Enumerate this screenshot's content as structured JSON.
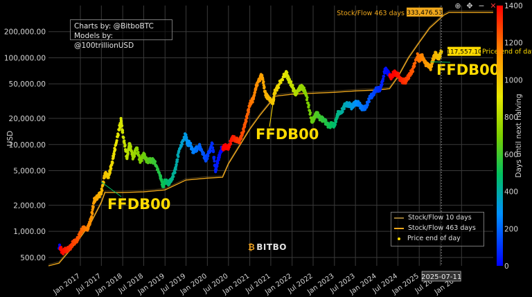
{
  "credits": {
    "line1": "Charts by: @BitboBTC",
    "line2": "Models by: @100trillionUSD"
  },
  "brand": {
    "name": "BITBO"
  },
  "toolbar": [
    {
      "name": "zoom-in-icon",
      "glyph": "⊕"
    },
    {
      "name": "pan-icon",
      "glyph": "✥"
    },
    {
      "name": "minus-icon",
      "glyph": "−"
    },
    {
      "name": "close-icon",
      "glyph": "✕"
    }
  ],
  "legend": [
    {
      "label": "Stock/Flow 10 days",
      "color": "#9a7a35",
      "kind": "line"
    },
    {
      "label": "Stock/Flow 463 days",
      "color": "#f0a81c",
      "kind": "line"
    },
    {
      "label": "Price end of day",
      "color": "#FFDB00",
      "kind": "dot"
    }
  ],
  "annotations": [
    "FFDB00",
    "FFDB00",
    "FFDB00"
  ],
  "chart_data": {
    "type": "scatter",
    "ylabel": "USD",
    "y_scale": "log",
    "ylim": [
      400,
      400000
    ],
    "y_ticks": [
      "500.00",
      "1,000.00",
      "2,000.00",
      "5,000.00",
      "10,000.00",
      "20,000.00",
      "50,000.00",
      "100,000.00",
      "200,000.00"
    ],
    "y_tick_values": [
      500,
      1000,
      2000,
      5000,
      10000,
      20000,
      50000,
      100000,
      200000
    ],
    "xlim": [
      "2016-04-01",
      "2026-10-01"
    ],
    "x_ticks": [
      "Jan 2017",
      "Jul 2017",
      "Jan 2018",
      "Jul 2018",
      "Jan 2019",
      "Jul 2019",
      "Jan 2020",
      "Jul 2020",
      "Jan 2021",
      "Jul 2021",
      "Jan 2022",
      "Jul 2022",
      "Jan 2023",
      "Jul 2023",
      "Jan 2024",
      "Jul 2024",
      "Jan 2025",
      "Jul 2025",
      "Jan 2026"
    ],
    "x_tick_dates": [
      "2017-01-01",
      "2017-07-01",
      "2018-01-01",
      "2018-07-01",
      "2019-01-01",
      "2019-07-01",
      "2020-01-01",
      "2020-07-01",
      "2021-01-01",
      "2021-07-01",
      "2022-01-01",
      "2022-07-01",
      "2023-01-01",
      "2023-07-01",
      "2024-01-01",
      "2024-07-01",
      "2025-01-01",
      "2025-07-01",
      "2026-01-01"
    ],
    "colorbar": {
      "label": "Days until next halving",
      "range": [
        0,
        1400
      ],
      "ticks": [
        0,
        200,
        400,
        600,
        800,
        1000,
        1200,
        1400
      ]
    },
    "series": [
      {
        "name": "Price end of day",
        "color_by": "days_until_halving",
        "points": [
          [
            "2016-07-01",
            670
          ],
          [
            "2016-08-01",
            580
          ],
          [
            "2016-09-01",
            610
          ],
          [
            "2016-10-01",
            640
          ],
          [
            "2016-11-01",
            740
          ],
          [
            "2016-12-01",
            780
          ],
          [
            "2017-01-01",
            960
          ],
          [
            "2017-02-01",
            1100
          ],
          [
            "2017-03-01",
            1050
          ],
          [
            "2017-04-01",
            1350
          ],
          [
            "2017-05-01",
            2300
          ],
          [
            "2017-06-01",
            2500
          ],
          [
            "2017-07-01",
            2800
          ],
          [
            "2017-08-01",
            4600
          ],
          [
            "2017-09-01",
            4300
          ],
          [
            "2017-10-01",
            6100
          ],
          [
            "2017-11-01",
            9800
          ],
          [
            "2017-12-17",
            19000
          ],
          [
            "2018-01-01",
            13500
          ],
          [
            "2018-02-06",
            6900
          ],
          [
            "2018-03-01",
            10300
          ],
          [
            "2018-04-01",
            7000
          ],
          [
            "2018-05-01",
            9200
          ],
          [
            "2018-06-01",
            6400
          ],
          [
            "2018-07-01",
            7700
          ],
          [
            "2018-08-01",
            6400
          ],
          [
            "2018-09-01",
            6600
          ],
          [
            "2018-10-01",
            6400
          ],
          [
            "2018-11-20",
            4400
          ],
          [
            "2018-12-15",
            3300
          ],
          [
            "2019-01-01",
            3800
          ],
          [
            "2019-02-01",
            3600
          ],
          [
            "2019-03-01",
            4000
          ],
          [
            "2019-04-01",
            5200
          ],
          [
            "2019-05-01",
            8500
          ],
          [
            "2019-06-26",
            12900
          ],
          [
            "2019-07-15",
            10200
          ],
          [
            "2019-08-01",
            10400
          ],
          [
            "2019-09-01",
            8300
          ],
          [
            "2019-10-26",
            9500
          ],
          [
            "2019-11-01",
            9200
          ],
          [
            "2019-12-17",
            6800
          ],
          [
            "2020-01-01",
            7200
          ],
          [
            "2020-02-12",
            10300
          ],
          [
            "2020-03-12",
            4900
          ],
          [
            "2020-04-01",
            6600
          ],
          [
            "2020-05-01",
            8800
          ],
          [
            "2020-06-01",
            9500
          ],
          [
            "2020-07-01",
            9200
          ],
          [
            "2020-08-01",
            11800
          ],
          [
            "2020-09-01",
            11500
          ],
          [
            "2020-10-01",
            10800
          ],
          [
            "2020-11-01",
            13700
          ],
          [
            "2020-12-01",
            19400
          ],
          [
            "2021-01-01",
            29000
          ],
          [
            "2021-02-01",
            34000
          ],
          [
            "2021-03-01",
            49000
          ],
          [
            "2021-04-14",
            63500
          ],
          [
            "2021-05-19",
            37000
          ],
          [
            "2021-06-01",
            36000
          ],
          [
            "2021-07-20",
            29800
          ],
          [
            "2021-08-01",
            39000
          ],
          [
            "2021-09-01",
            47000
          ],
          [
            "2021-11-10",
            67500
          ],
          [
            "2021-12-01",
            57000
          ],
          [
            "2022-01-01",
            47000
          ],
          [
            "2022-02-01",
            38000
          ],
          [
            "2022-03-01",
            44000
          ],
          [
            "2022-04-01",
            46000
          ],
          [
            "2022-05-01",
            38000
          ],
          [
            "2022-06-18",
            19000
          ],
          [
            "2022-07-01",
            19300
          ],
          [
            "2022-08-01",
            23000
          ],
          [
            "2022-09-01",
            20000
          ],
          [
            "2022-10-01",
            19400
          ],
          [
            "2022-11-21",
            15800
          ],
          [
            "2022-12-01",
            17000
          ],
          [
            "2023-01-01",
            16600
          ],
          [
            "2023-02-01",
            23000
          ],
          [
            "2023-03-01",
            23500
          ],
          [
            "2023-04-01",
            28500
          ],
          [
            "2023-05-01",
            29200
          ],
          [
            "2023-06-01",
            27000
          ],
          [
            "2023-07-01",
            30500
          ],
          [
            "2023-08-01",
            29200
          ],
          [
            "2023-09-01",
            25900
          ],
          [
            "2023-10-01",
            27000
          ],
          [
            "2023-11-01",
            34500
          ],
          [
            "2023-12-01",
            38000
          ],
          [
            "2024-01-01",
            44000
          ],
          [
            "2024-02-01",
            43000
          ],
          [
            "2024-03-14",
            73000
          ],
          [
            "2024-04-01",
            69000
          ],
          [
            "2024-05-01",
            60000
          ],
          [
            "2024-06-01",
            67000
          ],
          [
            "2024-07-01",
            63000
          ],
          [
            "2024-08-05",
            54000
          ],
          [
            "2024-09-06",
            54000
          ],
          [
            "2024-10-01",
            61000
          ],
          [
            "2024-11-01",
            70000
          ],
          [
            "2024-12-17",
            106000
          ],
          [
            "2025-01-01",
            94000
          ],
          [
            "2025-01-20",
            105000
          ],
          [
            "2025-02-01",
            100000
          ],
          [
            "2025-03-01",
            84000
          ],
          [
            "2025-04-08",
            76000
          ],
          [
            "2025-05-01",
            96000
          ],
          [
            "2025-05-22",
            111000
          ],
          [
            "2025-06-01",
            105000
          ],
          [
            "2025-06-22",
            101000
          ],
          [
            "2025-07-11",
            117557.1
          ]
        ]
      },
      {
        "name": "Stock/Flow 463 days",
        "color": "#f0a81c",
        "points": [
          [
            "2016-04-01",
            400
          ],
          [
            "2016-07-01",
            430
          ],
          [
            "2016-10-01",
            600
          ],
          [
            "2017-01-01",
            850
          ],
          [
            "2017-04-01",
            1250
          ],
          [
            "2017-07-01",
            2150
          ],
          [
            "2017-08-01",
            2800
          ],
          [
            "2018-01-01",
            2800
          ],
          [
            "2018-07-01",
            2850
          ],
          [
            "2019-01-01",
            3000
          ],
          [
            "2019-07-01",
            3900
          ],
          [
            "2020-01-01",
            4100
          ],
          [
            "2020-05-11",
            4200
          ],
          [
            "2020-07-01",
            6000
          ],
          [
            "2020-10-01",
            9500
          ],
          [
            "2021-01-01",
            15000
          ],
          [
            "2021-04-01",
            22000
          ],
          [
            "2021-07-01",
            31000
          ],
          [
            "2021-08-01",
            36000
          ],
          [
            "2022-01-01",
            38000
          ],
          [
            "2022-07-01",
            39000
          ],
          [
            "2023-01-01",
            40000
          ],
          [
            "2023-07-01",
            41500
          ],
          [
            "2024-01-01",
            42500
          ],
          [
            "2024-04-20",
            44000
          ],
          [
            "2024-07-01",
            60000
          ],
          [
            "2024-10-01",
            100000
          ],
          [
            "2025-01-01",
            150000
          ],
          [
            "2025-04-01",
            220000
          ],
          [
            "2025-08-01",
            310000
          ],
          [
            "2025-09-15",
            333476.53
          ],
          [
            "2026-10-01",
            333476.53
          ]
        ]
      }
    ],
    "callouts": [
      {
        "series": "Stock/Flow 463 days",
        "value": "333,476.53"
      },
      {
        "series": "Price end of day",
        "value": "117,557.10"
      }
    ],
    "crosshair_date": "2025-07-11",
    "halvings": [
      "2016-07-09",
      "2020-05-11",
      "2024-04-20",
      "2028-04-01"
    ]
  }
}
